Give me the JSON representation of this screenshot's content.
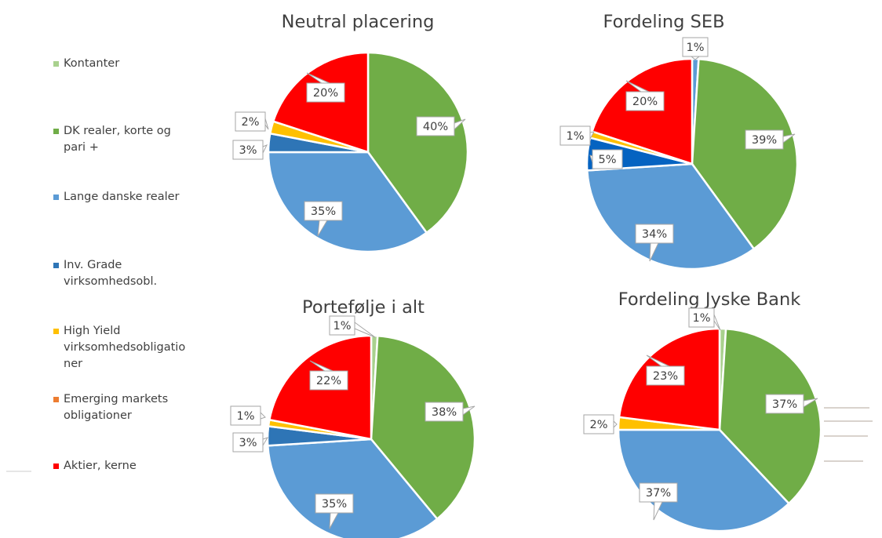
{
  "legend": [
    {
      "label": "Kontanter",
      "color": "#a9d18e"
    },
    {
      "label": "DK realer, korte og\npari +",
      "color": "#70ad47"
    },
    {
      "label": "Lange danske realer",
      "color": "#5b9bd5"
    },
    {
      "label": "Inv. Grade\nvirksomhedsobl.",
      "color": "#2e75b6"
    },
    {
      "label": "High Yield\nvirksomhedsobligatio\nner",
      "color": "#ffc000"
    },
    {
      "label": "Emerging markets\nobligationer",
      "color": "#ed7d31"
    },
    {
      "label": "Aktier, kerne",
      "color": "#ff0000"
    }
  ],
  "chart_data": [
    {
      "type": "pie",
      "title": "Neutral placering",
      "categories": [
        "Kontanter",
        "DK realer, korte og pari +",
        "Lange danske realer",
        "Inv. Grade virksomhedsobl.",
        "High Yield virksomhedsobligationer",
        "Emerging markets obligationer",
        "Aktier, kerne"
      ],
      "values": [
        0,
        40,
        35,
        3,
        2,
        0,
        20
      ],
      "labels": [
        "",
        "40%",
        "35%",
        "3%",
        "2%",
        "",
        "20%"
      ],
      "colors": [
        "#a9d18e",
        "#70ad47",
        "#5b9bd5",
        "#2e75b6",
        "#ffc000",
        "#ed7d31",
        "#ff0000"
      ]
    },
    {
      "type": "pie",
      "title": "Fordeling SEB",
      "categories": [
        "Kontanter",
        "DK realer, korte og pari +",
        "Lange danske realer",
        "Inv. Grade virksomhedsobl.",
        "High Yield virksomhedsobligationer",
        "Emerging markets obligationer",
        "Aktier, kerne"
      ],
      "values": [
        1,
        39,
        34,
        5,
        1,
        0,
        20
      ],
      "labels": [
        "1%",
        "39%",
        "34%",
        "5%",
        "1%",
        "",
        "20%"
      ],
      "colors": [
        "#5b9bd5",
        "#70ad47",
        "#5b9bd5",
        "#0563c1",
        "#ffc000",
        "#ed7d31",
        "#ff0000"
      ]
    },
    {
      "type": "pie",
      "title": "Portefølje i alt",
      "categories": [
        "Kontanter",
        "DK realer, korte og pari +",
        "Lange danske realer",
        "Inv. Grade virksomhedsobl.",
        "High Yield virksomhedsobligationer",
        "Emerging markets obligationer",
        "Aktier, kerne"
      ],
      "values": [
        1,
        38,
        35,
        3,
        1,
        0,
        22
      ],
      "labels": [
        "1%",
        "38%",
        "35%",
        "3%",
        "1%",
        "",
        "22%"
      ],
      "colors": [
        "#a9d18e",
        "#70ad47",
        "#5b9bd5",
        "#2e75b6",
        "#ffc000",
        "#ed7d31",
        "#ff0000"
      ]
    },
    {
      "type": "pie",
      "title": "Fordeling Jyske Bank",
      "categories": [
        "Kontanter",
        "DK realer, korte og pari +",
        "Lange danske realer",
        "Inv. Grade virksomhedsobl.",
        "High Yield virksomhedsobligationer",
        "Emerging markets obligationer",
        "Aktier, kerne"
      ],
      "values": [
        1,
        37,
        37,
        0,
        2,
        0,
        23
      ],
      "labels": [
        "1%",
        "37%",
        "37%",
        "",
        "2%",
        "",
        "23%"
      ],
      "colors": [
        "#a9d18e",
        "#70ad47",
        "#5b9bd5",
        "#2e75b6",
        "#ffc000",
        "#ed7d31",
        "#ff0000"
      ]
    }
  ]
}
